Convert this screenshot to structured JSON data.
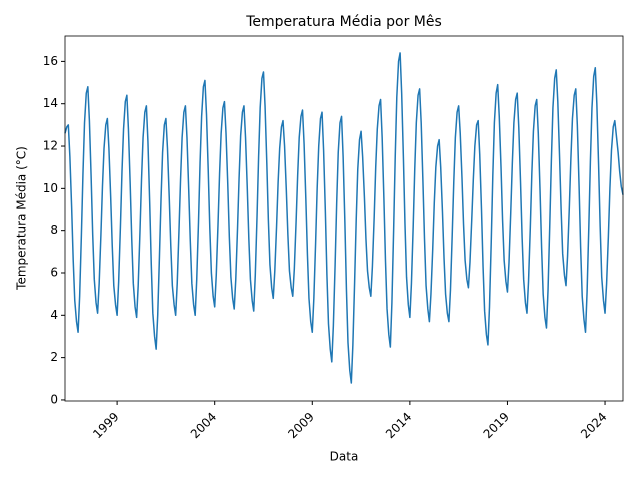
{
  "chart_data": {
    "type": "line",
    "title": "Temperatura Média por Mês",
    "xlabel": "Data",
    "ylabel": "Temperatura Média (°C)",
    "color": "#1f77b4",
    "grid": false,
    "xlim": [
      1996.33,
      2024.92
    ],
    "xticks": [
      1999,
      2004,
      2009,
      2014,
      2019,
      2024
    ],
    "ylim": [
      -0.05,
      17.2
    ],
    "yticks": [
      0,
      2,
      4,
      6,
      8,
      10,
      12,
      14,
      16
    ],
    "x": [
      1996.33,
      1996.42,
      1996.5,
      1996.58,
      1996.67,
      1996.75,
      1996.83,
      1996.92,
      1997.0,
      1997.08,
      1997.17,
      1997.25,
      1997.33,
      1997.42,
      1997.5,
      1997.58,
      1997.67,
      1997.75,
      1997.83,
      1997.92,
      1998.0,
      1998.08,
      1998.17,
      1998.25,
      1998.33,
      1998.42,
      1998.5,
      1998.58,
      1998.67,
      1998.75,
      1998.83,
      1998.92,
      1999.0,
      1999.08,
      1999.17,
      1999.25,
      1999.33,
      1999.42,
      1999.5,
      1999.58,
      1999.67,
      1999.75,
      1999.83,
      1999.92,
      2000.0,
      2000.08,
      2000.17,
      2000.25,
      2000.33,
      2000.42,
      2000.5,
      2000.58,
      2000.67,
      2000.75,
      2000.83,
      2000.92,
      2001.0,
      2001.08,
      2001.17,
      2001.25,
      2001.33,
      2001.42,
      2001.5,
      2001.58,
      2001.67,
      2001.75,
      2001.83,
      2001.92,
      2002.0,
      2002.08,
      2002.17,
      2002.25,
      2002.33,
      2002.42,
      2002.5,
      2002.58,
      2002.67,
      2002.75,
      2002.83,
      2002.92,
      2003.0,
      2003.08,
      2003.17,
      2003.25,
      2003.33,
      2003.42,
      2003.5,
      2003.58,
      2003.67,
      2003.75,
      2003.83,
      2003.92,
      2004.0,
      2004.08,
      2004.17,
      2004.25,
      2004.33,
      2004.42,
      2004.5,
      2004.58,
      2004.67,
      2004.75,
      2004.83,
      2004.92,
      2005.0,
      2005.08,
      2005.17,
      2005.25,
      2005.33,
      2005.42,
      2005.5,
      2005.58,
      2005.67,
      2005.75,
      2005.83,
      2005.92,
      2006.0,
      2006.08,
      2006.17,
      2006.25,
      2006.33,
      2006.42,
      2006.5,
      2006.58,
      2006.67,
      2006.75,
      2006.83,
      2006.92,
      2007.0,
      2007.08,
      2007.17,
      2007.25,
      2007.33,
      2007.42,
      2007.5,
      2007.58,
      2007.67,
      2007.75,
      2007.83,
      2007.92,
      2008.0,
      2008.08,
      2008.17,
      2008.25,
      2008.33,
      2008.42,
      2008.5,
      2008.58,
      2008.67,
      2008.75,
      2008.83,
      2008.92,
      2009.0,
      2009.08,
      2009.17,
      2009.25,
      2009.33,
      2009.42,
      2009.5,
      2009.58,
      2009.67,
      2009.75,
      2009.83,
      2009.92,
      2010.0,
      2010.08,
      2010.17,
      2010.25,
      2010.33,
      2010.42,
      2010.5,
      2010.58,
      2010.67,
      2010.75,
      2010.83,
      2010.92,
      2011.0,
      2011.08,
      2011.17,
      2011.25,
      2011.33,
      2011.42,
      2011.5,
      2011.58,
      2011.67,
      2011.75,
      2011.83,
      2011.92,
      2012.0,
      2012.08,
      2012.17,
      2012.25,
      2012.33,
      2012.42,
      2012.5,
      2012.58,
      2012.67,
      2012.75,
      2012.83,
      2012.92,
      2013.0,
      2013.08,
      2013.17,
      2013.25,
      2013.33,
      2013.42,
      2013.5,
      2013.58,
      2013.67,
      2013.75,
      2013.83,
      2013.92,
      2014.0,
      2014.08,
      2014.17,
      2014.25,
      2014.33,
      2014.42,
      2014.5,
      2014.58,
      2014.67,
      2014.75,
      2014.83,
      2014.92,
      2015.0,
      2015.08,
      2015.17,
      2015.25,
      2015.33,
      2015.42,
      2015.5,
      2015.58,
      2015.67,
      2015.75,
      2015.83,
      2015.92,
      2016.0,
      2016.08,
      2016.17,
      2016.25,
      2016.33,
      2016.42,
      2016.5,
      2016.58,
      2016.67,
      2016.75,
      2016.83,
      2016.92,
      2017.0,
      2017.08,
      2017.17,
      2017.25,
      2017.33,
      2017.42,
      2017.5,
      2017.58,
      2017.67,
      2017.75,
      2017.83,
      2017.92,
      2018.0,
      2018.08,
      2018.17,
      2018.25,
      2018.33,
      2018.42,
      2018.5,
      2018.58,
      2018.67,
      2018.75,
      2018.83,
      2018.92,
      2019.0,
      2019.08,
      2019.17,
      2019.25,
      2019.33,
      2019.42,
      2019.5,
      2019.58,
      2019.67,
      2019.75,
      2019.83,
      2019.92,
      2020.0,
      2020.08,
      2020.17,
      2020.25,
      2020.33,
      2020.42,
      2020.5,
      2020.58,
      2020.67,
      2020.75,
      2020.83,
      2020.92,
      2021.0,
      2021.08,
      2021.17,
      2021.25,
      2021.33,
      2021.42,
      2021.5,
      2021.58,
      2021.67,
      2021.75,
      2021.83,
      2021.92,
      2022.0,
      2022.08,
      2022.17,
      2022.25,
      2022.33,
      2022.42,
      2022.5,
      2022.58,
      2022.67,
      2022.75,
      2022.83,
      2022.92,
      2023.0,
      2023.08,
      2023.17,
      2023.25,
      2023.33,
      2023.42,
      2023.5,
      2023.58,
      2023.67,
      2023.75,
      2023.83,
      2023.92,
      2024.0,
      2024.08,
      2024.17,
      2024.25,
      2024.33,
      2024.42,
      2024.5,
      2024.58,
      2024.67,
      2024.75,
      2024.83,
      2024.92
    ],
    "values": [
      12.6,
      12.9,
      13.0,
      11.5,
      9.1,
      6.6,
      4.7,
      3.7,
      3.2,
      4.9,
      7.8,
      10.7,
      13.1,
      14.5,
      14.8,
      13.2,
      10.5,
      7.8,
      5.7,
      4.6,
      4.1,
      5.5,
      7.8,
      10.1,
      11.9,
      13.0,
      13.3,
      11.9,
      9.6,
      7.3,
      5.4,
      4.5,
      4.0,
      5.6,
      8.2,
      10.8,
      12.8,
      14.1,
      14.4,
      12.8,
      10.2,
      7.6,
      5.5,
      4.4,
      3.9,
      5.4,
      7.9,
      10.4,
      12.4,
      13.6,
      13.9,
      12.2,
      9.3,
      6.4,
      4.1,
      3.0,
      2.4,
      4.0,
      6.8,
      9.5,
      11.7,
      13.0,
      13.3,
      11.9,
      9.6,
      7.3,
      5.4,
      4.5,
      4.0,
      5.5,
      8.0,
      10.4,
      12.4,
      13.6,
      13.9,
      12.4,
      9.9,
      7.5,
      5.5,
      4.5,
      4.0,
      5.7,
      8.4,
      11.2,
      13.4,
      14.8,
      15.1,
      13.5,
      10.8,
      8.1,
      6.0,
      4.9,
      4.4,
      5.9,
      8.3,
      10.7,
      12.6,
      13.8,
      14.1,
      12.6,
      10.2,
      7.7,
      5.8,
      4.8,
      4.3,
      5.7,
      8.1,
      10.5,
      12.5,
      13.6,
      13.9,
      12.4,
      10.0,
      7.6,
      5.7,
      4.7,
      4.2,
      5.9,
      8.7,
      11.5,
      13.8,
      15.2,
      15.5,
      13.9,
      11.2,
      8.5,
      6.4,
      5.3,
      4.8,
      6.1,
      8.2,
      10.3,
      11.9,
      12.9,
      13.2,
      12.0,
      9.9,
      7.8,
      6.1,
      5.3,
      4.9,
      6.2,
      8.4,
      10.6,
      12.4,
      13.4,
      13.7,
      12.1,
      9.5,
      6.9,
      4.8,
      3.7,
      3.2,
      4.8,
      7.4,
      10.0,
      12.0,
      13.3,
      13.6,
      11.8,
      8.9,
      5.9,
      3.6,
      2.4,
      1.8,
      3.5,
      6.4,
      9.3,
      11.7,
      13.1,
      13.4,
      11.5,
      8.4,
      5.2,
      2.7,
      1.4,
      0.8,
      2.6,
      5.6,
      8.5,
      10.9,
      12.3,
      12.7,
      11.5,
      9.6,
      7.6,
      6.1,
      5.3,
      4.9,
      6.3,
      8.6,
      11.0,
      12.8,
      13.9,
      14.2,
      12.4,
      9.5,
      6.6,
      4.3,
      3.1,
      2.5,
      4.6,
      8.1,
      11.5,
      14.3,
      16.0,
      16.4,
      14.5,
      11.4,
      8.3,
      5.8,
      4.5,
      3.9,
      5.5,
      8.2,
      10.9,
      13.1,
      14.4,
      14.7,
      13.1,
      10.3,
      7.6,
      5.4,
      4.3,
      3.7,
      5.0,
      7.1,
      9.3,
      11.0,
      12.0,
      12.3,
      11.0,
      8.9,
      6.7,
      5.0,
      4.1,
      3.7,
      5.2,
      7.8,
      10.3,
      12.4,
      13.6,
      13.9,
      12.6,
      10.5,
      8.3,
      6.6,
      5.7,
      5.3,
      6.5,
      8.5,
      10.4,
      12.0,
      13.0,
      13.2,
      11.6,
      9.0,
      6.3,
      4.2,
      3.1,
      2.6,
      4.4,
      7.5,
      10.6,
      13.1,
      14.5,
      14.9,
      13.4,
      11.0,
      8.5,
      6.6,
      5.6,
      5.1,
      6.5,
      8.9,
      11.2,
      13.1,
      14.2,
      14.5,
      12.9,
      10.3,
      7.7,
      5.7,
      4.6,
      4.1,
      5.6,
      8.1,
      10.7,
      12.7,
      13.9,
      14.2,
      12.6,
      9.9,
      7.2,
      5.0,
      3.9,
      3.4,
      5.2,
      8.3,
      11.3,
      13.8,
      15.2,
      15.6,
      14.1,
      11.5,
      9.0,
      6.9,
      5.9,
      5.4,
      6.8,
      9.1,
      11.4,
      13.3,
      14.4,
      14.7,
      13.0,
      10.1,
      7.2,
      4.9,
      3.8,
      3.2,
      5.1,
      8.2,
      11.3,
      13.8,
      15.3,
      15.7,
      14.0,
      11.1,
      8.2,
      5.8,
      4.7,
      4.1,
      5.5,
      7.7,
      10.0,
      11.8,
      12.9,
      13.2,
      12.5,
      11.7,
      10.8,
      10.1,
      9.7
    ]
  }
}
